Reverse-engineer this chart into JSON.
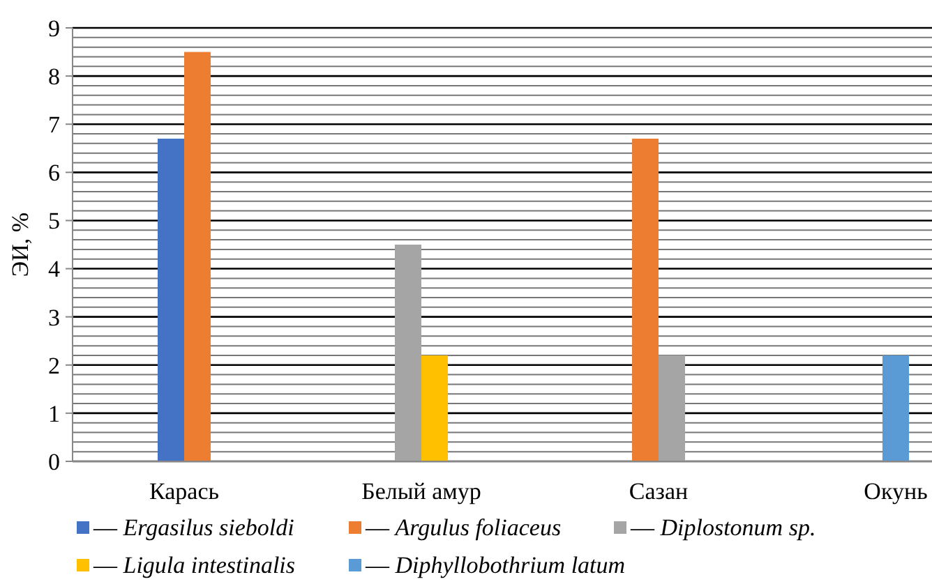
{
  "chart_data": {
    "type": "bar",
    "ylabel": "ЭИ, %",
    "categories": [
      "Карась",
      "Белый амур",
      "Сазан",
      "Окунь"
    ],
    "series": [
      {
        "name": "— Ergasilus sieboldi",
        "color": "#4472c4",
        "values": [
          6.7,
          null,
          null,
          null
        ]
      },
      {
        "name": "— Argulus foliaceus",
        "color": "#ed7d31",
        "values": [
          8.5,
          null,
          6.7,
          null
        ]
      },
      {
        "name": "— Diplostonum sp.",
        "color": "#a5a5a5",
        "values": [
          null,
          4.5,
          2.2,
          null
        ]
      },
      {
        "name": "— Ligula intestinalis",
        "color": "#ffc000",
        "values": [
          null,
          2.2,
          null,
          null
        ]
      },
      {
        "name": "— Diphyllobothrium latum",
        "color": "#5b9bd5",
        "values": [
          null,
          null,
          null,
          2.2
        ]
      }
    ],
    "ylim": [
      0,
      9
    ],
    "yticks": [
      0,
      {
        "value": 0.2,
        "label": null
      },
      {
        "value": 0.4,
        "label": null
      },
      {
        "value": 0.6,
        "label": null
      },
      {
        "value": 0.8,
        "label": null
      },
      1,
      {
        "value": 1.2,
        "label": null
      },
      {
        "value": 1.4,
        "label": null
      },
      {
        "value": 1.6,
        "label": null
      },
      {
        "value": 1.8,
        "label": null
      },
      2,
      {
        "value": 2.2,
        "label": null
      },
      {
        "value": 2.4,
        "label": null
      },
      {
        "value": 2.6,
        "label": null
      },
      {
        "value": 2.8,
        "label": null
      },
      3,
      {
        "value": 3.2,
        "label": null
      },
      {
        "value": 3.4,
        "label": null
      },
      {
        "value": 3.6,
        "label": null
      },
      {
        "value": 3.8,
        "label": null
      },
      4,
      {
        "value": 4.2,
        "label": null
      },
      {
        "value": 4.4,
        "label": null
      },
      {
        "value": 4.6,
        "label": null
      },
      {
        "value": 4.8,
        "label": null
      },
      5,
      {
        "value": 5.2,
        "label": null
      },
      {
        "value": 5.4,
        "label": null
      },
      {
        "value": 5.6,
        "label": null
      },
      {
        "value": 5.8,
        "label": null
      },
      6,
      {
        "value": 6.2,
        "label": null
      },
      {
        "value": 6.4,
        "label": null
      },
      {
        "value": 6.6,
        "label": null
      },
      {
        "value": 6.8,
        "label": null
      },
      7,
      {
        "value": 7.2,
        "label": null
      },
      {
        "value": 7.4,
        "label": null
      },
      {
        "value": 7.6,
        "label": null
      },
      {
        "value": 7.8,
        "label": null
      },
      8,
      {
        "value": 8.2,
        "label": null
      },
      {
        "value": 8.4,
        "label": null
      },
      {
        "value": 8.6,
        "label": null
      },
      {
        "value": 8.8,
        "label": null
      },
      9
    ],
    "grid": true,
    "legend": "bottom"
  }
}
